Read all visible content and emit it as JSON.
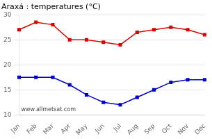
{
  "chart_data": {
    "type": "line",
    "title": "Araxá : temperatures (°C)",
    "categories": [
      "Jan",
      "Feb",
      "Mar",
      "Apr",
      "May",
      "Jun",
      "Jul",
      "Aug",
      "Sep",
      "Oct",
      "Nov",
      "Dec"
    ],
    "series": [
      {
        "color": "#dd0000",
        "values": [
          27.0,
          28.5,
          28.0,
          25.0,
          25.0,
          24.5,
          24.0,
          26.5,
          27.0,
          27.5,
          27.0,
          26.0
        ]
      },
      {
        "color": "#0000cc",
        "values": [
          17.5,
          17.5,
          17.5,
          16.0,
          14.0,
          12.5,
          12.0,
          13.5,
          15.0,
          16.5,
          17.0,
          17.0
        ]
      }
    ],
    "ylim": [
      10,
      30
    ],
    "yticks": [
      10,
      15,
      20,
      25,
      30
    ],
    "grid": "y",
    "marker": "square",
    "annotations": [
      "www.allmetsat.com"
    ]
  }
}
